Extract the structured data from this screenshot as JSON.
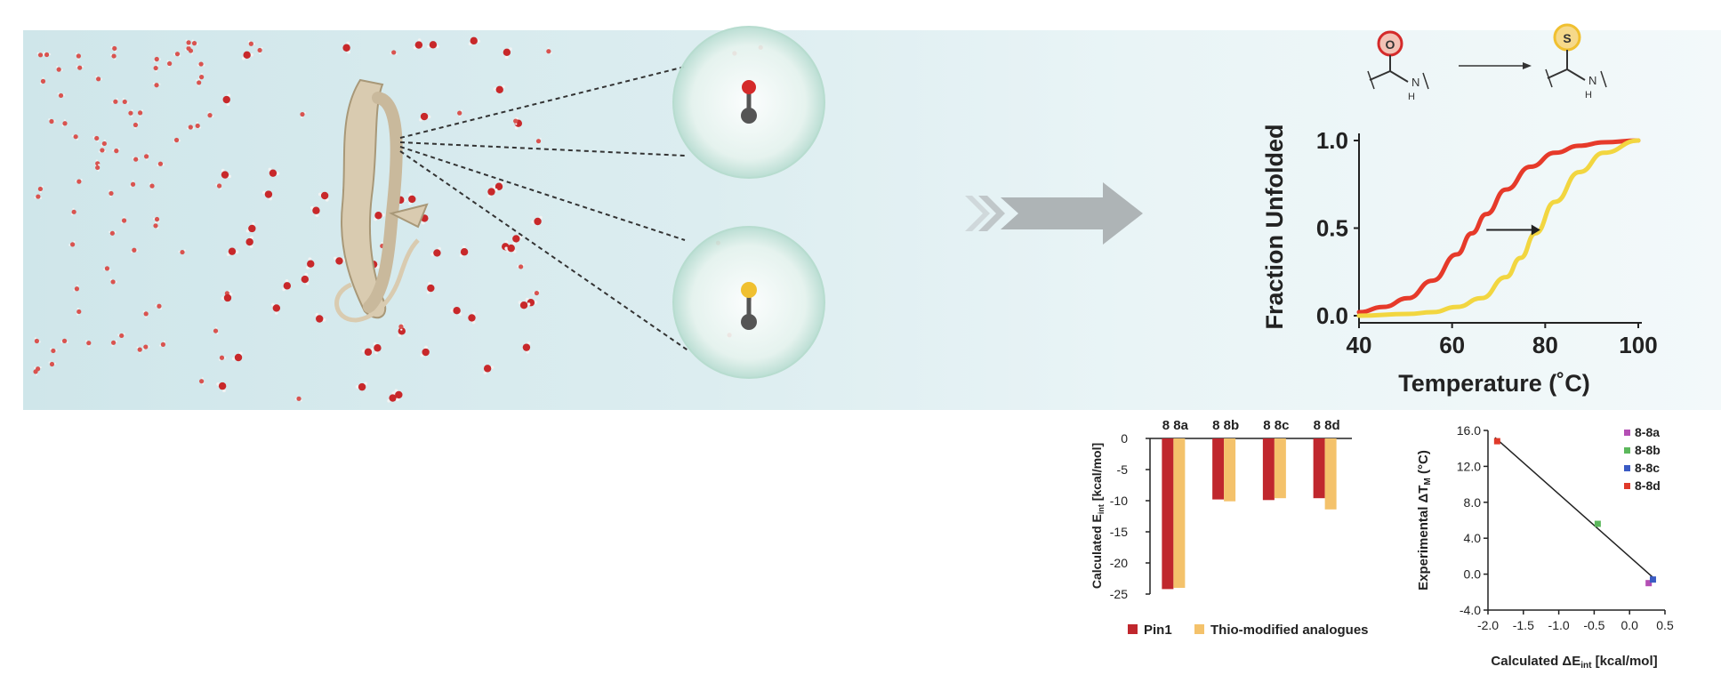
{
  "mechanism": {
    "reaction_left_atom": "O",
    "reaction_right_atom": "S",
    "amide_nh_label": "N",
    "amide_h_label": "H",
    "colors": {
      "oxygen": "#d42a2a",
      "sulfur": "#f0c030",
      "carbon": "#555555",
      "protein": "#d9cbb0",
      "arrow": "#b0b6b8"
    }
  },
  "chart_data": [
    {
      "type": "line",
      "xlabel": "Temperature (˚C)",
      "ylabel": "Fraction Unfolded",
      "xlim": [
        40,
        97
      ],
      "ylim": [
        0,
        1
      ],
      "x_ticks": [
        "40",
        "60",
        "80",
        "100"
      ],
      "y_ticks": [
        "0.0",
        "0.5",
        "1.0"
      ],
      "series": [
        {
          "color": "#e63a2a",
          "x": [
            40,
            45,
            50,
            55,
            60,
            63,
            66,
            70,
            75,
            80,
            85,
            90,
            97
          ],
          "y": [
            0.02,
            0.05,
            0.1,
            0.2,
            0.35,
            0.47,
            0.58,
            0.72,
            0.85,
            0.93,
            0.97,
            0.99,
            1.0
          ]
        },
        {
          "color": "#f2d640",
          "x": [
            40,
            50,
            55,
            60,
            65,
            70,
            73,
            76,
            80,
            85,
            90,
            97
          ],
          "y": [
            0.0,
            0.01,
            0.02,
            0.05,
            0.1,
            0.22,
            0.33,
            0.47,
            0.65,
            0.82,
            0.93,
            1.0
          ]
        }
      ],
      "shift_arrow": {
        "from_x": 66,
        "to_x": 77,
        "y": 0.5
      }
    },
    {
      "type": "bar",
      "categories": [
        "8 8a",
        "8 8b",
        "8 8c",
        "8 8d"
      ],
      "ylabel": "Calculated E",
      "ylabel_sub": "int",
      "ylabel_unit": " [kcal/mol]",
      "ylim": [
        -25,
        0
      ],
      "y_ticks": [
        "0",
        "-5",
        "-10",
        "-15",
        "-20",
        "-25"
      ],
      "series": [
        {
          "name": "Pin1",
          "color": "#c0272d",
          "values": [
            -24.2,
            -9.8,
            -9.9,
            -9.6
          ]
        },
        {
          "name": "Thio-modified analogues",
          "color": "#f4c26b",
          "values": [
            -24.0,
            -10.1,
            -9.6,
            -11.4
          ]
        }
      ]
    },
    {
      "type": "scatter",
      "xlabel": "Calculated ΔE",
      "xlabel_sub": "int",
      "xlabel_unit": " [kcal/mol]",
      "ylabel": "Experimental ΔT",
      "ylabel_sub": "M",
      "ylabel_unit": " (°C)",
      "xlim": [
        -2.0,
        0.5
      ],
      "ylim": [
        -4.0,
        16.0
      ],
      "x_ticks": [
        "-2.0",
        "-1.5",
        "-1.0",
        "-0.5",
        "0.0",
        "0.5"
      ],
      "y_ticks": [
        "16.0",
        "12.0",
        "8.0",
        "4.0",
        "0.0",
        "-4.0"
      ],
      "legend": [
        "8-8a",
        "8-8b",
        "8-8c",
        "8-8d"
      ],
      "legend_position": "top-right",
      "points": [
        {
          "name": "8-8a",
          "x": 0.27,
          "y": -1.0,
          "color": "#b44fb4"
        },
        {
          "name": "8-8b",
          "x": -0.45,
          "y": 5.6,
          "color": "#5cb85c"
        },
        {
          "name": "8-8c",
          "x": 0.33,
          "y": -0.6,
          "color": "#3b5bc4"
        },
        {
          "name": "8-8d",
          "x": -1.87,
          "y": 14.8,
          "color": "#e03a2a"
        }
      ],
      "fit_line": {
        "x": [
          -1.9,
          0.35
        ],
        "y": [
          15.2,
          -0.5
        ]
      }
    }
  ]
}
